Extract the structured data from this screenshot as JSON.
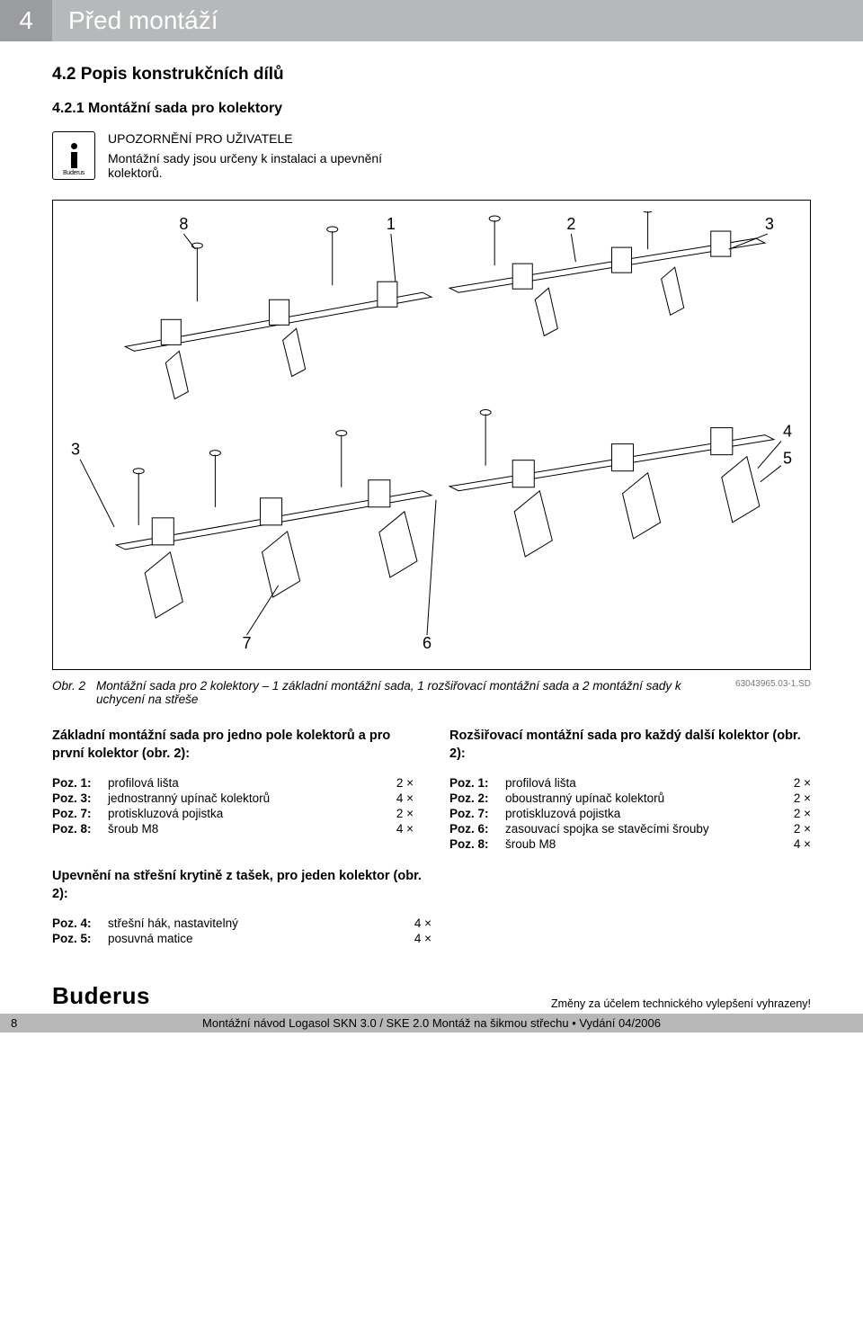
{
  "header": {
    "chapter_num": "4",
    "chapter_title": "Před montáží"
  },
  "section": {
    "num_title": "4.2   Popis konstrukčních dílů",
    "sub_num_title": "4.2.1   Montážní sada pro kolektory"
  },
  "notice": {
    "caption": "UPOZORNĚNÍ PRO UŽIVATELE",
    "body": "Montážní sady jsou určeny k instalaci a upevnění kolektorů.",
    "brand": "Buderus"
  },
  "figure": {
    "callouts_top": [
      "8",
      "1",
      "2",
      "3"
    ],
    "callouts_left": [
      "3"
    ],
    "callouts_right": [
      "4",
      "5"
    ],
    "callouts_bottom": [
      "7",
      "6"
    ],
    "caption_label": "Obr. 2",
    "caption_text": "Montážní sada pro 2 kolektory – 1 základní montážní sada, 1 rozšiřovací montážní sada a 2 montážní sady k uchycení na střeše",
    "drawing_code": "63043965.03-1.SD"
  },
  "left_column": {
    "heading": "Základní montážní sada pro jedno pole kolektorů a pro první kolektor (obr. 2):",
    "items": [
      {
        "poz": "Poz. 1:",
        "label": "profilová lišta",
        "qty": "2 ×"
      },
      {
        "poz": "Poz. 3:",
        "label": "jednostranný upínač kolektorů",
        "qty": "4 ×"
      },
      {
        "poz": "Poz. 7:",
        "label": "protiskluzová pojistka",
        "qty": "2 ×"
      },
      {
        "poz": "Poz. 8:",
        "label": "šroub M8",
        "qty": "4 ×"
      }
    ]
  },
  "right_column": {
    "heading": "Rozšiřovací montážní sada pro každý další kolektor (obr. 2):",
    "items": [
      {
        "poz": "Poz. 1:",
        "label": "profilová lišta",
        "qty": "2 ×"
      },
      {
        "poz": "Poz. 2:",
        "label": "oboustranný upínač kolektorů",
        "qty": "2 ×"
      },
      {
        "poz": "Poz. 7:",
        "label": "protiskluzová pojistka",
        "qty": "2 ×"
      },
      {
        "poz": "Poz. 6:",
        "label": "zasouvací spojka se stavěcími šrouby",
        "qty": "2 ×"
      },
      {
        "poz": "Poz. 8:",
        "label": "šroub M8",
        "qty": "4 ×"
      }
    ]
  },
  "roof_block": {
    "heading": "Upevnění na střešní krytině z tašek, pro jeden kolektor (obr. 2):",
    "items": [
      {
        "poz": "Poz. 4:",
        "label": "střešní hák, nastavitelný",
        "qty": "4 ×"
      },
      {
        "poz": "Poz. 5:",
        "label": "posuvná matice",
        "qty": "4 ×"
      }
    ]
  },
  "footer": {
    "logo": "Buderus",
    "note": "Změny za účelem technického vylepšení vyhrazeny!",
    "page_num": "8",
    "doc_line": "Montážní návod Logasol SKN 3.0 / SKE 2.0 Montáž na šikmou střechu • Vydání 04/2006"
  },
  "colors": {
    "header_num_bg": "#9a9c9e",
    "header_bar_bg": "#b6b8ba",
    "text": "#000000",
    "page_bg": "#ffffff"
  }
}
